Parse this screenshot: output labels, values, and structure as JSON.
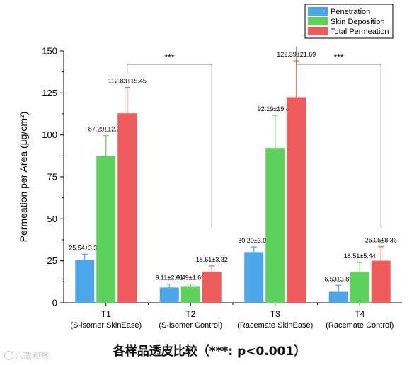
{
  "chart_data": {
    "type": "bar",
    "ylabel": "Permeation per Area (μg/cm²)",
    "ylim": [
      0,
      150
    ],
    "yticks": [
      0,
      25,
      50,
      75,
      100,
      125,
      150
    ],
    "categories": [
      "T1",
      "T2",
      "T3",
      "T4"
    ],
    "category_sublabels": [
      "(S-isomer SkinEase)",
      "(S-isomer Control)",
      "(Racemate SkinEase)",
      "(Racemate Control)"
    ],
    "series": [
      {
        "name": "Penetration",
        "color": "#4da6e8",
        "values": [
          25.54,
          9.11,
          30.2,
          6.53
        ],
        "errors": [
          3.34,
          2.01,
          3.0,
          3.89
        ],
        "labels": [
          "25.54±3.34",
          "9.11±2.01",
          "30.20±3.00",
          "6.53±3.89"
        ]
      },
      {
        "name": "Skin Deposition",
        "color": "#5dd35d",
        "values": [
          87.29,
          9.49,
          92.19,
          18.51
        ],
        "errors": [
          12.29,
          1.63,
          19.42,
          5.44
        ],
        "labels": [
          "87.29±12.29",
          "9.49±1.63",
          "92.19±19.42",
          "18.51±5.44"
        ]
      },
      {
        "name": "Total Permeation",
        "color": "#ef5b5b",
        "values": [
          112.83,
          18.61,
          122.39,
          25.05
        ],
        "errors": [
          15.45,
          3.32,
          21.69,
          8.36
        ],
        "labels": [
          "112.83±15.45",
          "18.61±3.32",
          "122.39±21.69",
          "25.05±8.36"
        ]
      }
    ],
    "significance": [
      {
        "from": "T1",
        "to": "T2",
        "label": "***"
      },
      {
        "from": "T3",
        "to": "T4",
        "label": "***"
      }
    ],
    "legend_position": "top-right",
    "grid": false
  },
  "caption": "各样品透皮比较（***: p<0.001）",
  "watermark": "六散观察"
}
